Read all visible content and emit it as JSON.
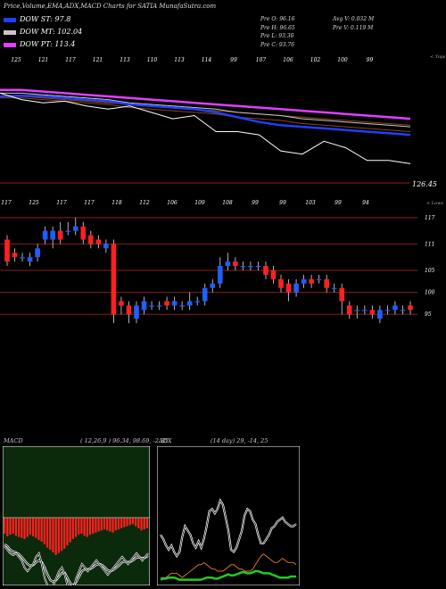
{
  "header": {
    "title": "Price,Volume,EMA,ADX,MACD Charts for SATIA MunafaSutra.com"
  },
  "legend": [
    {
      "label": "DOW ST: 97.8",
      "color": "#1f3fff"
    },
    {
      "label": "DOW MT: 102.04",
      "color": "#c8c8c8"
    },
    {
      "label": "DOW PT: 113.4",
      "color": "#e040ff"
    }
  ],
  "ohlc": {
    "open": "Pre  O: 96.16",
    "high": "Pre  H: 96.65",
    "low": "Pre  L: 93.30",
    "close": "Pre  C: 93.76",
    "avg_volume": "Avg V: 0.032  M",
    "prev_volume": "Pre  V: 0.119  M"
  },
  "price_panel": {
    "top_labels": [
      "125",
      "121",
      "117",
      "121",
      "113",
      "110",
      "113",
      "114",
      "99",
      "107",
      "106",
      "102",
      "100",
      "99"
    ],
    "top_right_label": "< Tops",
    "bottom_labels": [
      "117",
      "125",
      "117",
      "117",
      "118",
      "112",
      "106",
      "109",
      "108",
      "99",
      "99",
      "103",
      "99",
      "94"
    ],
    "bottom_right_label": "< Lows",
    "price_tag": "126.45",
    "right_axis": [
      "117",
      "111",
      "105",
      "100",
      "95"
    ]
  },
  "macd_panel": {
    "title": "MACD",
    "params": "( 12,26,9 ) 96.34,  98.69,  -2.35"
  },
  "adx_panel": {
    "title": "ADX",
    "params": "(14  day) 29,  -14,  25"
  },
  "colors": {
    "ema_short": "#1f3fff",
    "ema_mid": "#c8c8c8",
    "ema_long": "#e040ff",
    "ema_brown": "#8b4513",
    "candle_up": "#1f5fff",
    "candle_down": "#ff2020",
    "macd_hist": "#ff2020",
    "macd_bg": "#0b2a0b",
    "adx_green": "#22cc22",
    "adx_orange": "#d07020"
  },
  "chart_data": [
    {
      "type": "line",
      "name": "price-ema",
      "series": [
        {
          "name": "DOW PT",
          "values": [
            125,
            125,
            124.5,
            124,
            123.5,
            123,
            122.5,
            122,
            121.5,
            121,
            120.5,
            120,
            119.5,
            119,
            118.5,
            118,
            117.5,
            117,
            116.5,
            116
          ]
        },
        {
          "name": "DOW MT",
          "values": [
            124,
            124,
            123.5,
            123,
            122.5,
            122,
            121,
            120.5,
            120,
            119.5,
            119,
            118,
            117.5,
            117,
            116,
            115.5,
            115,
            114.5,
            114,
            113.5
          ]
        },
        {
          "name": "DOW ST",
          "values": [
            123,
            123.2,
            123,
            122.5,
            122,
            121.5,
            120.5,
            120,
            119.5,
            119,
            118,
            116.5,
            115,
            114,
            113.5,
            113,
            112.5,
            112,
            111.5,
            111
          ]
        },
        {
          "name": "price",
          "values": [
            124,
            122,
            121,
            121.5,
            120,
            119,
            120,
            118,
            116,
            117,
            112,
            112,
            111,
            106,
            105,
            109,
            107,
            103,
            103,
            102
          ]
        }
      ]
    },
    {
      "type": "candlestick",
      "name": "price-candles",
      "candles": [
        {
          "o": 112,
          "c": 107,
          "h": 113,
          "l": 106
        },
        {
          "o": 109,
          "c": 108,
          "h": 110,
          "l": 107
        },
        {
          "o": 108,
          "c": 108,
          "h": 109,
          "l": 107
        },
        {
          "o": 107,
          "c": 108,
          "h": 109,
          "l": 106
        },
        {
          "o": 108,
          "c": 110,
          "h": 111,
          "l": 107
        },
        {
          "o": 112,
          "c": 114,
          "h": 115,
          "l": 111
        },
        {
          "o": 112,
          "c": 114,
          "h": 115,
          "l": 110
        },
        {
          "o": 114,
          "c": 112,
          "h": 116,
          "l": 111
        },
        {
          "o": 114,
          "c": 114,
          "h": 116,
          "l": 113
        },
        {
          "o": 114,
          "c": 115,
          "h": 117,
          "l": 113
        },
        {
          "o": 115,
          "c": 112,
          "h": 116,
          "l": 111
        },
        {
          "o": 113,
          "c": 111,
          "h": 114,
          "l": 110
        },
        {
          "o": 112,
          "c": 111,
          "h": 113,
          "l": 110
        },
        {
          "o": 110,
          "c": 111,
          "h": 112,
          "l": 109
        },
        {
          "o": 111,
          "c": 95,
          "h": 112,
          "l": 93
        },
        {
          "o": 98,
          "c": 97,
          "h": 99,
          "l": 95
        },
        {
          "o": 97,
          "c": 95,
          "h": 98,
          "l": 93
        },
        {
          "o": 94,
          "c": 97,
          "h": 98,
          "l": 93
        },
        {
          "o": 96,
          "c": 98,
          "h": 99,
          "l": 95
        },
        {
          "o": 97,
          "c": 97,
          "h": 98,
          "l": 96
        },
        {
          "o": 97,
          "c": 97,
          "h": 98,
          "l": 96
        },
        {
          "o": 98,
          "c": 97,
          "h": 99,
          "l": 96
        },
        {
          "o": 97,
          "c": 98,
          "h": 99,
          "l": 96
        },
        {
          "o": 97,
          "c": 97,
          "h": 98,
          "l": 96
        },
        {
          "o": 97,
          "c": 98,
          "h": 100,
          "l": 96
        },
        {
          "o": 98,
          "c": 98,
          "h": 99,
          "l": 97
        },
        {
          "o": 98,
          "c": 101,
          "h": 102,
          "l": 97
        },
        {
          "o": 101,
          "c": 102,
          "h": 103,
          "l": 100
        },
        {
          "o": 102,
          "c": 106,
          "h": 108,
          "l": 101
        },
        {
          "o": 106,
          "c": 107,
          "h": 109,
          "l": 105
        },
        {
          "o": 107,
          "c": 106,
          "h": 108,
          "l": 105
        },
        {
          "o": 106,
          "c": 106,
          "h": 107,
          "l": 105
        },
        {
          "o": 106,
          "c": 106,
          "h": 107,
          "l": 105
        },
        {
          "o": 106,
          "c": 106,
          "h": 107,
          "l": 105
        },
        {
          "o": 106,
          "c": 104,
          "h": 107,
          "l": 103
        },
        {
          "o": 105,
          "c": 103,
          "h": 106,
          "l": 102
        },
        {
          "o": 103,
          "c": 101,
          "h": 104,
          "l": 100
        },
        {
          "o": 102,
          "c": 100,
          "h": 103,
          "l": 98
        },
        {
          "o": 100,
          "c": 102,
          "h": 103,
          "l": 99
        },
        {
          "o": 102,
          "c": 103,
          "h": 104,
          "l": 101
        },
        {
          "o": 103,
          "c": 102,
          "h": 104,
          "l": 101
        },
        {
          "o": 103,
          "c": 103,
          "h": 104,
          "l": 102
        },
        {
          "o": 103,
          "c": 101,
          "h": 104,
          "l": 100
        },
        {
          "o": 101,
          "c": 101,
          "h": 102,
          "l": 100
        },
        {
          "o": 101,
          "c": 98,
          "h": 102,
          "l": 95
        },
        {
          "o": 97,
          "c": 95,
          "h": 98,
          "l": 94
        },
        {
          "o": 96,
          "c": 96,
          "h": 97,
          "l": 94
        },
        {
          "o": 96,
          "c": 96,
          "h": 97,
          "l": 95
        },
        {
          "o": 96,
          "c": 95,
          "h": 97,
          "l": 94
        },
        {
          "o": 94,
          "c": 96,
          "h": 97,
          "l": 93
        },
        {
          "o": 96,
          "c": 96,
          "h": 97,
          "l": 95
        },
        {
          "o": 96,
          "c": 97,
          "h": 98,
          "l": 95
        },
        {
          "o": 96,
          "c": 96,
          "h": 97,
          "l": 95
        },
        {
          "o": 97,
          "c": 96,
          "h": 98,
          "l": 95
        }
      ],
      "ylim": [
        92,
        119
      ]
    },
    {
      "type": "bar",
      "name": "macd",
      "histogram": [
        -3,
        -3.5,
        -3.2,
        -3,
        -3.4,
        -3.6,
        -3.8,
        -4,
        -3.6,
        -3.2,
        -3.5,
        -3.8,
        -4.2,
        -4.5,
        -5,
        -5.6,
        -6,
        -6.5,
        -7,
        -6.6,
        -6.2,
        -5.8,
        -5.2,
        -4.6,
        -4,
        -3.6,
        -3.2,
        -3,
        -3.4,
        -3.6,
        -3.2,
        -3,
        -2.8,
        -2.6,
        -2.4,
        -2.2,
        -2.4,
        -2.6,
        -2.8,
        -2.4,
        -2.2,
        -2,
        -1.8,
        -1.6,
        -1.4,
        -1.2,
        -1.6,
        -2,
        -2.4,
        -2.2,
        -2
      ],
      "macd": [
        -3,
        -4,
        -5,
        -5.5,
        -5,
        -6,
        -7,
        -9,
        -10,
        -9,
        -8,
        -6,
        -5,
        -8,
        -12,
        -14,
        -15,
        -14,
        -12,
        -10,
        -9,
        -11,
        -14,
        -16,
        -15,
        -12,
        -10,
        -8,
        -9,
        -10,
        -9,
        -8,
        -7,
        -8,
        -9,
        -10,
        -11,
        -10,
        -9,
        -8,
        -7,
        -6,
        -7,
        -8,
        -7,
        -6,
        -5,
        -6,
        -7,
        -6,
        -5
      ],
      "signal": [
        -2.5,
        -3,
        -4,
        -4.5,
        -4.8,
        -5.2,
        -6,
        -7,
        -8,
        -8.5,
        -8.3,
        -7.5,
        -7,
        -7.5,
        -9,
        -11,
        -12.5,
        -13,
        -12.5,
        -11.5,
        -10.5,
        -10.5,
        -12,
        -13.5,
        -14,
        -13,
        -11.5,
        -10,
        -9.5,
        -9.5,
        -9.3,
        -8.8,
        -8.2,
        -8,
        -8.3,
        -9,
        -9.8,
        -10,
        -9.6,
        -9,
        -8.3,
        -7.5,
        -7.3,
        -7.5,
        -7.3,
        -6.8,
        -6.2,
        -6.1,
        -6.4,
        -6.2,
        -5.7
      ]
    },
    {
      "type": "line",
      "name": "adx",
      "series": [
        {
          "name": "+DI",
          "values": [
            22,
            20,
            17,
            15,
            17,
            14,
            12,
            14,
            21,
            26,
            24,
            22,
            18,
            16,
            19,
            16,
            20,
            26,
            33,
            34,
            32,
            34,
            38,
            36,
            30,
            24,
            15,
            14,
            16,
            20,
            24,
            31,
            34,
            33,
            29,
            27,
            22,
            18,
            18,
            20,
            22,
            25,
            26,
            28,
            29,
            30,
            28,
            27,
            26,
            26,
            27
          ]
        },
        {
          "name": "-DI",
          "values": [
            2,
            2,
            2,
            3,
            4,
            4,
            4,
            3,
            2,
            3,
            4,
            5,
            6,
            7,
            8,
            8,
            9,
            8,
            7,
            6,
            6,
            5,
            5,
            5,
            6,
            7,
            8,
            8,
            7,
            6,
            6,
            5,
            5,
            5,
            6,
            8,
            10,
            12,
            13,
            12,
            11,
            10,
            9,
            9,
            10,
            11,
            10,
            9,
            9,
            9,
            8
          ]
        },
        {
          "name": "ADX",
          "values": [
            1,
            1.5,
            1.5,
            2,
            2,
            2,
            1.5,
            1,
            1,
            1,
            1,
            1,
            1,
            1,
            1,
            1,
            1.5,
            2,
            2,
            2,
            1.5,
            1.5,
            2,
            2.5,
            3,
            3.5,
            3,
            3,
            3.5,
            4,
            4.5,
            4.5,
            4,
            4,
            4.5,
            5,
            5,
            4.5,
            4,
            4,
            4,
            3.5,
            3,
            2.5,
            2,
            2,
            2,
            2,
            2.5,
            2.5,
            2.5
          ]
        }
      ],
      "ylim": [
        0,
        60
      ]
    }
  ]
}
